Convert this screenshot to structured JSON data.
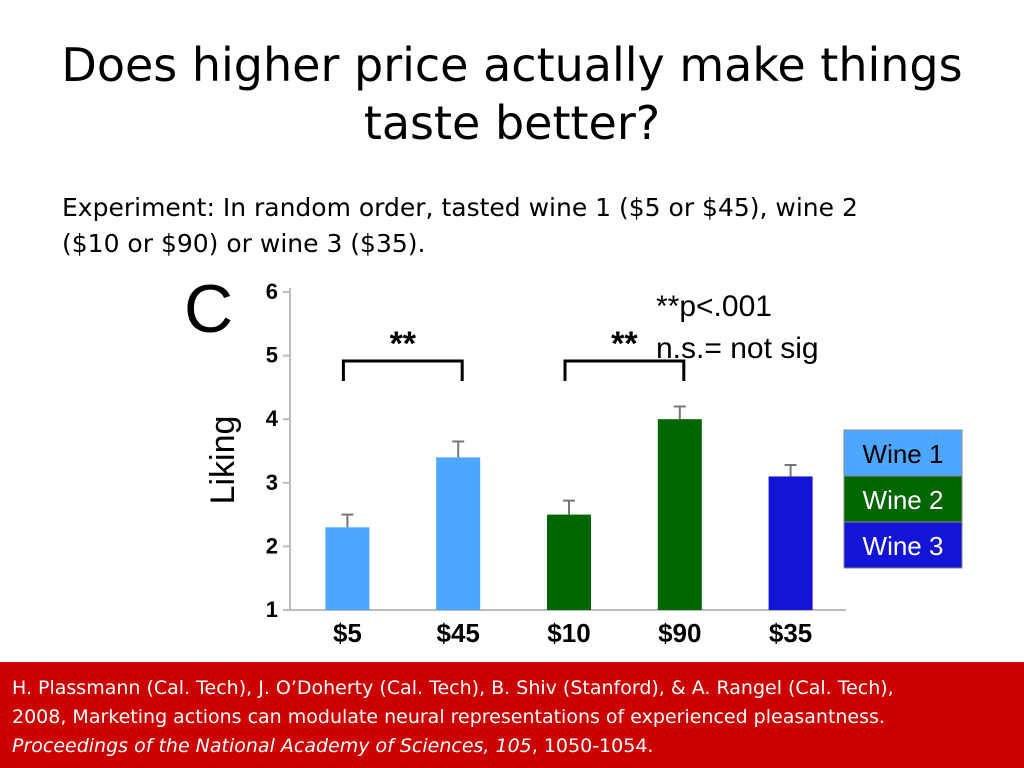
{
  "slide": {
    "title_line1": "Does higher price actually make things",
    "title_line2": "taste better?",
    "subtitle_line1": "Experiment: In random order, tasted wine 1 ($5 or $45), wine 2",
    "subtitle_line2": "($10 or $90) or wine 3 ($35)."
  },
  "chart_data": {
    "type": "bar",
    "panel_label": "C",
    "ylabel": "Liking",
    "ylim": [
      1,
      6
    ],
    "yticks": [
      "1",
      "2",
      "3",
      "4",
      "5",
      "6"
    ],
    "categories": [
      "$5",
      "$45",
      "$10",
      "$90",
      "$35"
    ],
    "values": [
      2.3,
      3.4,
      2.5,
      4.0,
      3.1
    ],
    "errors": [
      0.2,
      0.25,
      0.22,
      0.2,
      0.18
    ],
    "bar_groups": [
      "Wine 1",
      "Wine 1",
      "Wine 2",
      "Wine 2",
      "Wine 3"
    ],
    "series_colors": {
      "Wine 1": "#4da6ff",
      "Wine 2": "#006600",
      "Wine 3": "#1414d6"
    },
    "legend": [
      {
        "name": "Wine 1",
        "color": "#4da6ff"
      },
      {
        "name": "Wine 2",
        "color": "#006600"
      },
      {
        "name": "Wine 3",
        "color": "#1414d6"
      }
    ],
    "legend_position": "right",
    "significance_brackets": [
      {
        "from": 0,
        "to": 1,
        "label": "**"
      },
      {
        "from": 2,
        "to": 3,
        "label": "**"
      }
    ],
    "annotations": [
      "**p<.001",
      "n.s.= not sig"
    ],
    "grid": false
  },
  "citation": {
    "line1": "H. Plassmann (Cal. Tech), J. O’Doherty (Cal. Tech), B. Shiv (Stanford), & A. Rangel (Cal. Tech),",
    "line2": "2008,  Marketing actions can modulate neural representations of experienced pleasantness.",
    "journal": "Proceedings of the National Academy of Sciences, 105",
    "pages": ", 1050-1054."
  }
}
